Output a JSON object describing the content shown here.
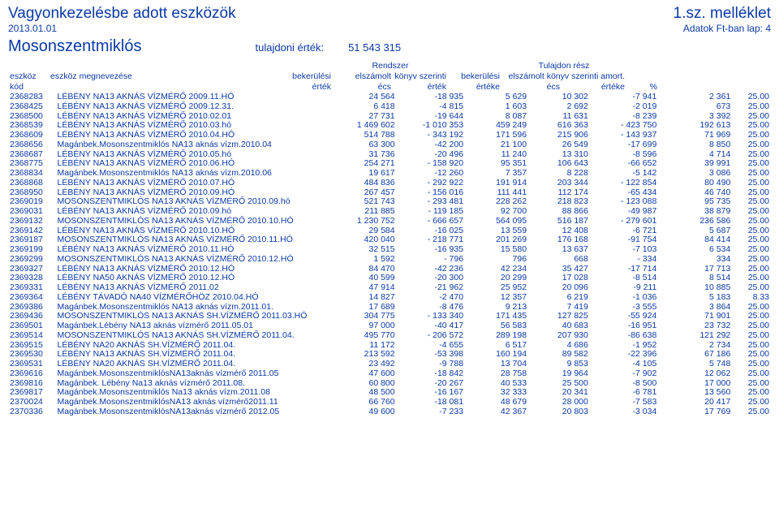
{
  "title": "Vagyonkezelésbe adott eszközök",
  "attachment": "1.sz. melléklet",
  "date": "2013.01.01",
  "dataNote": "Adatok Ft-ban   lap: 4",
  "entity": "Mosonszentmiklós",
  "tulajLabel": "tulajdoni érték:",
  "tulajValue": "51 543 315",
  "headers": {
    "line1": {
      "rendszer": "Rendszer",
      "tulajdon": "Tulajdon rész"
    },
    "line2": {
      "eszkoz": "eszköz",
      "megnev": "eszköz megnevezése",
      "bekerulesi": "bekerülési",
      "elszamolt": "elszámolt",
      "konyv": "könyv szerinti",
      "bekerulesi2": "bekerülési",
      "elszamolt_konyv_amort": "elszámolt könyv szerinti amort."
    },
    "line3": {
      "kod": "kód",
      "ertek": "érték",
      "ecs": "écs",
      "ertek2": "érték",
      "erteke": "értéke",
      "ecs2": "écs",
      "erteke2": "értéke",
      "pct": "%"
    }
  },
  "rows": [
    [
      "2368283",
      "LÉBÉNY NA13 AKNÁS VÍZMÉRŐ 2009.11.HÓ",
      "24 564",
      "-18 935",
      "5 629",
      "10 302",
      "-7 941",
      "2 361",
      "25.00"
    ],
    [
      "2368425",
      "LÉBÉNY  NA13 AKNÁS VÍZMÉRŐ 2009.12.31.",
      "6 418",
      "-4 815",
      "1 603",
      "2 692",
      "-2 019",
      "673",
      "25.00"
    ],
    [
      "2368500",
      "LÉBÉNY  NA13 AKNÁS VÍZMÉRŐ 2010.02.01",
      "27 731",
      "-19 644",
      "8 087",
      "11 631",
      "-8 239",
      "3 392",
      "25.00"
    ],
    [
      "2368539",
      "LÉBÉNY NA13 AKNÁS  VÍZMÉRŐ 2010.03.hó",
      "1 469 602",
      "-1 010 353",
      "459 249",
      "616 363",
      "- 423 750",
      "192 613",
      "25.00"
    ],
    [
      "2368609",
      "LÉBÉNY  NA13 AKNÁS VÍZMÉRŐ 2010.04.HÓ",
      "514 788",
      "- 343 192",
      "171 596",
      "215 906",
      "- 143 937",
      "71 969",
      "25.00"
    ],
    [
      "2368656",
      "Magánbek.Mosonszentmiklós NA13 aknás vízm.2010.04",
      "63 300",
      "-42 200",
      "21 100",
      "26 549",
      "-17 699",
      "8 850",
      "25.00"
    ],
    [
      "2368687",
      "LÉBÉNY NA13 AKNÁS  VÍZMÉRŐ 2010.05.hó",
      "31 736",
      "-20 496",
      "11 240",
      "13 310",
      "-8 596",
      "4 714",
      "25.00"
    ],
    [
      "2368775",
      "LÉBÉNY NA13 AKNÁS VÍZMÉRŐ 2010.06.HÓ",
      "254 271",
      "- 158 920",
      "95 351",
      "106 643",
      "-66 652",
      "39 991",
      "25.00"
    ],
    [
      "2368834",
      "Magánbek.Mosonszentmiklós NA13 aknás vízm.2010.06",
      "19 617",
      "-12 260",
      "7 357",
      "8 228",
      "-5 142",
      "3 086",
      "25.00"
    ],
    [
      "2368868",
      "LÉBÉNY  NA13 AKNÁS VÍZMÉRŐ 2010.07.HÓ",
      "484 836",
      "- 292 922",
      "191 914",
      "203 344",
      "- 122 854",
      "80 490",
      "25.00"
    ],
    [
      "2368950",
      "LÉBÉNY NA13  AKNÁS VÍZMÉRŐ 2010.09.HÓ",
      "267 457",
      "- 156 016",
      "111 441",
      "112 174",
      "-65 434",
      "46 740",
      "25.00"
    ],
    [
      "2369019",
      "MOSONSZENTMIKLÓS NA13 AKNÁS VÍZMÉRŐ 2010.09.hó",
      "521 743",
      "- 293 481",
      "228 262",
      "218 823",
      "- 123 088",
      "95 735",
      "25.00"
    ],
    [
      "2369031",
      "LÉBÉNY NA13 AKNÁS VÍZMÉRŐ  2010.09.hó",
      "211 885",
      "- 119 185",
      "92 700",
      "88 866",
      "-49 987",
      "38 879",
      "25.00"
    ],
    [
      "2369132",
      "MOSONSZENTMIKLÓS NA13 AKNÁS VÍZMÉRŐ 2010.10.HÓ",
      "1 230 752",
      "- 666 657",
      "564 095",
      "516 187",
      "- 279 601",
      "236 586",
      "25.00"
    ],
    [
      "2369142",
      "LÉBÉNY NA13 AKNÁS VÍZMÉRŐ 2010.10.HÓ",
      "29 584",
      "-16 025",
      "13 559",
      "12 408",
      "-6 721",
      "5 687",
      "25.00"
    ],
    [
      "2369187",
      "MOSONSZENTMIKLÓS NA13 AKNÁS VÍZMÉRŐ 2010.11.HÓ",
      "420 040",
      "- 218 771",
      "201 269",
      "176 168",
      "-91 754",
      "84 414",
      "25.00"
    ],
    [
      "2369199",
      "LÉBÉNY  NA13 AKNÁS VÍZMÉRŐ 2010.11.HÓ",
      "32 515",
      "-16 935",
      "15 580",
      "13 637",
      "-7 103",
      "6 534",
      "25.00"
    ],
    [
      "2369299",
      "MOSONSZENTMIKLÓS NA13  AKNÁS VÍZMÉRŐ 2010.12.HÓ",
      "1 592",
      "- 796",
      "796",
      "668",
      "- 334",
      "334",
      "25.00"
    ],
    [
      "2369327",
      "LÉBÉNY  NA13 AKNÁS VÍZMÉRŐ 2010.12.HÓ",
      "84 470",
      "-42 236",
      "42 234",
      "35 427",
      "-17 714",
      "17 713",
      "25.00"
    ],
    [
      "2369328",
      "LÉBÉNY  NA50  AKNÁS VÍZMÉRŐ 2010.12.HÓ",
      "40 599",
      "-20 300",
      "20 299",
      "17 028",
      "-8 514",
      "8 514",
      "25.00"
    ],
    [
      "2369331",
      "LÉBÉNY  NA13 AKNÁS VÍZMÉRŐ 2011.02",
      "47 914",
      "-21 962",
      "25 952",
      "20 096",
      "-9 211",
      "10 885",
      "25.00"
    ],
    [
      "2369364",
      "LÉBÉNY TÁVADÓ NA40 VÍZMÉRŐHÖZ 2010.04.HÓ",
      "14 827",
      "-2 470",
      "12 357",
      "6 219",
      "-1 036",
      "5 183",
      "8.33"
    ],
    [
      "2369386",
      "Magánbek.Mosonszentmiklós NA13 aknás vízm.2011.01.",
      "17 689",
      "-8 476",
      "9 213",
      "7 419",
      "-3 555",
      "3 864",
      "25.00"
    ],
    [
      "2369436",
      "MOSONSZENTMIKLÓS NA13 AKNÁS SH.VÍZMÉRŐ 2011.03.HÓ",
      "304 775",
      "- 133 340",
      "171 435",
      "127 825",
      "-55 924",
      "71 901",
      "25.00"
    ],
    [
      "2369501",
      "Magánbek.Lébény NA13 aknás vízmérő 2011.05.01",
      "97 000",
      "-40 417",
      "56 583",
      "40 683",
      "-16 951",
      "23 732",
      "25.00"
    ],
    [
      "2369514",
      "MOSONSZENTMIKLÓS NA13 AKNÁS SH.VÍZMÉRŐ  2011.04.",
      "495 770",
      "- 206 572",
      "289 198",
      "207 930",
      "-86 638",
      "121 292",
      "25.00"
    ],
    [
      "2369515",
      "LÉBÉNY NA20 AKNÁS SH.VÍZMÉRŐ  2011.04.",
      "11 172",
      "-4 655",
      "6 517",
      "4 686",
      "-1 952",
      "2 734",
      "25.00"
    ],
    [
      "2369530",
      "LÉBÉNY NA13 AKNÁS SH.VÍZMÉRŐ  2011.04.",
      "213 592",
      "-53 398",
      "160 194",
      "89 582",
      "-22 396",
      "67 186",
      "25.00"
    ],
    [
      "2369531",
      "LÉBÉNY NA20 AKNÁS SH.VÍZMÉRŐ  2011.04.",
      "23 492",
      "-9 788",
      "13 704",
      "9 853",
      "-4 105",
      "5 748",
      "25.00"
    ],
    [
      "2369616",
      "Magánbek.MosonszentmiklósNA13aknás vízmérő 2011.05",
      "47 600",
      "-18 842",
      "28 758",
      "19 964",
      "-7 902",
      "12 062",
      "25.00"
    ],
    [
      "2369816",
      "Magánbek. Lébény Na13 aknás vízmérő 2011.08.",
      "60 800",
      "-20 267",
      "40 533",
      "25 500",
      "-8 500",
      "17 000",
      "25.00"
    ],
    [
      "2369817",
      "Magánbek.Mosonszentmiklós Na13 aknás vízm.2011.08",
      "48 500",
      "-16 167",
      "32 333",
      "20 341",
      "-6 781",
      "13 560",
      "25.00"
    ],
    [
      "2370024",
      "Magánbek.MosonszentmiklósNA13 aknás vízmérő2011.11",
      "66 760",
      "-18 081",
      "48 679",
      "28 000",
      "-7 583",
      "20 417",
      "25.00"
    ],
    [
      "2370336",
      "Magánbek.MosonszentmiklósNA13aknás vízmérő 2012.05",
      "49 600",
      "-7 233",
      "42 367",
      "20 803",
      "-3 034",
      "17 769",
      "25.00"
    ]
  ],
  "colors": {
    "text": "#0a39a6",
    "background": "#ffffff"
  }
}
